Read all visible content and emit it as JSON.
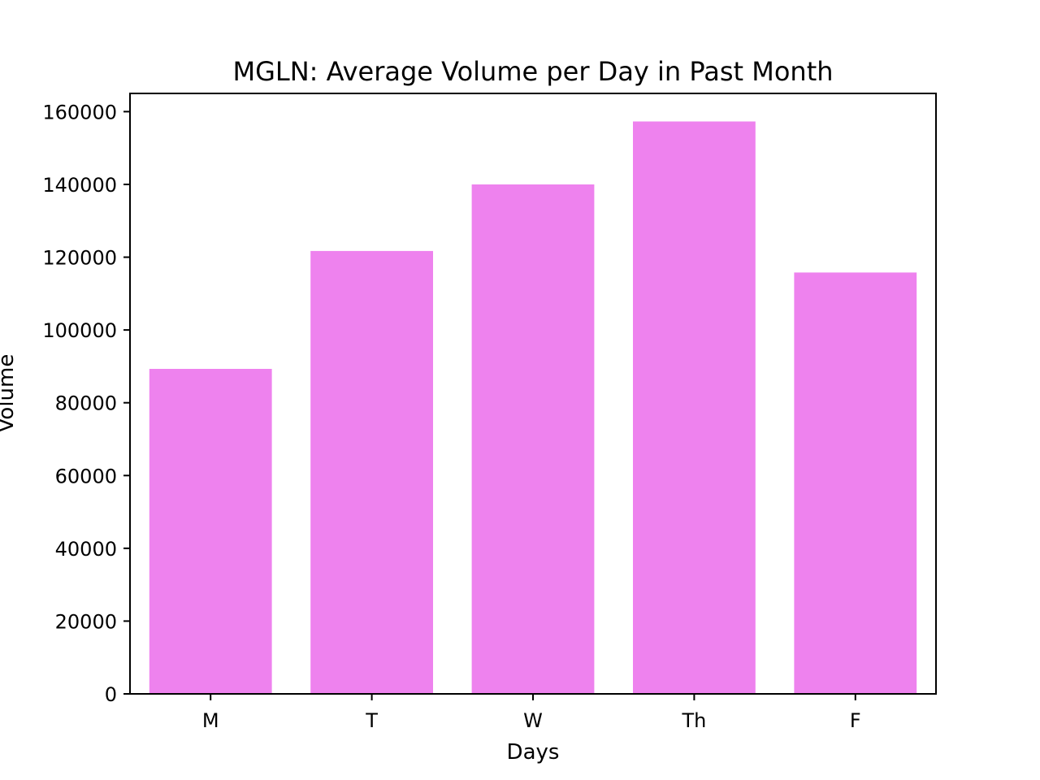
{
  "chart_data": {
    "type": "bar",
    "title": "MGLN: Average Volume per Day in Past Month",
    "xlabel": "Days",
    "ylabel": "Volume",
    "categories": [
      "M",
      "T",
      "W",
      "Th",
      "F"
    ],
    "values": [
      89300,
      121700,
      140000,
      157300,
      115800
    ],
    "ylim": [
      0,
      165000
    ],
    "yticks": [
      0,
      20000,
      40000,
      60000,
      80000,
      100000,
      120000,
      140000,
      160000
    ],
    "bar_color": "#ee82ee",
    "grid": false,
    "legend": "none"
  }
}
